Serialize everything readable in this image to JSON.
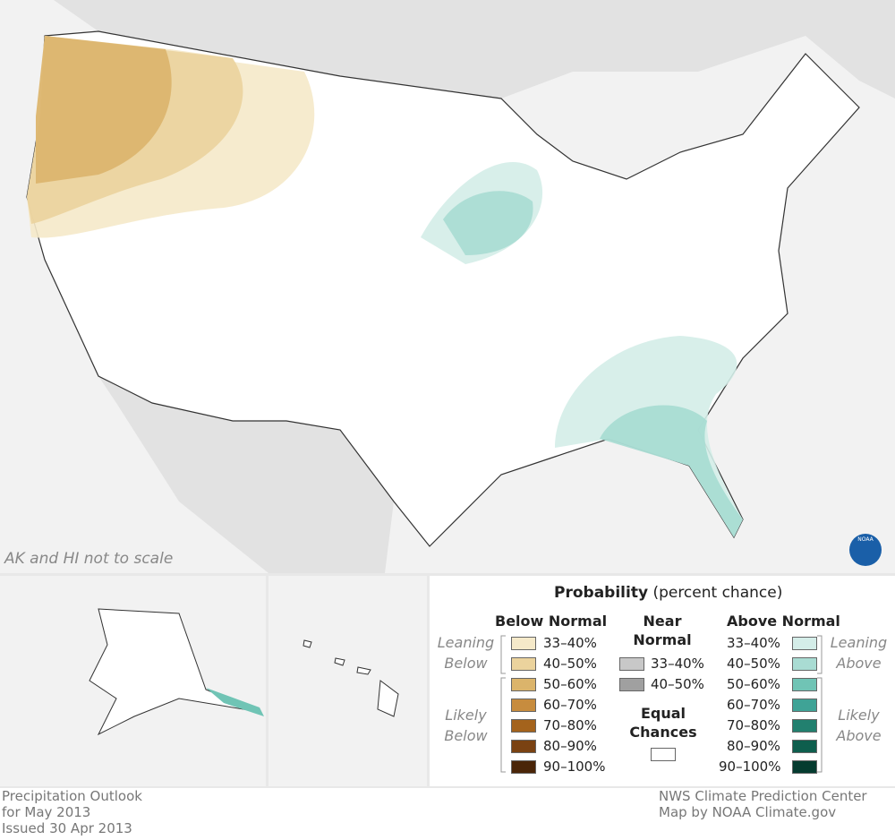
{
  "map": {
    "note": "AK and HI not to scale",
    "logo": "NOAA"
  },
  "legend": {
    "title": "Probability",
    "title_note": "(percent chance)",
    "below": {
      "heading": "Below Normal",
      "leaning": "Leaning Below",
      "likely": "Likely Below",
      "items": [
        {
          "label": "33–40%",
          "color": "#f5e9c9"
        },
        {
          "label": "40–50%",
          "color": "#ebd39d"
        },
        {
          "label": "50–60%",
          "color": "#dbb46b"
        },
        {
          "label": "60–70%",
          "color": "#c78c3e"
        },
        {
          "label": "70–80%",
          "color": "#a4631c"
        },
        {
          "label": "80–90%",
          "color": "#7a4212"
        },
        {
          "label": "90–100%",
          "color": "#4a2508"
        }
      ]
    },
    "near": {
      "heading": "Near Normal",
      "items": [
        {
          "label": "33–40%",
          "color": "#c8c8c8"
        },
        {
          "label": "40–50%",
          "color": "#a0a0a0"
        }
      ]
    },
    "equal": {
      "heading": "Equal Chances",
      "color": "#ffffff"
    },
    "above": {
      "heading": "Above Normal",
      "leaning": "Leaning Above",
      "likely": "Likely Above",
      "items": [
        {
          "label": "33–40%",
          "color": "#d4ede8"
        },
        {
          "label": "40–50%",
          "color": "#a9dcd3"
        },
        {
          "label": "50–60%",
          "color": "#70c4b5"
        },
        {
          "label": "60–70%",
          "color": "#3fa396"
        },
        {
          "label": "70–80%",
          "color": "#22806f"
        },
        {
          "label": "80–90%",
          "color": "#0e5e4d"
        },
        {
          "label": "90–100%",
          "color": "#053b2f"
        }
      ]
    }
  },
  "footer": {
    "left": [
      "Precipitation Outlook",
      "for May 2013",
      "Issued 30 Apr 2013"
    ],
    "right": [
      "NWS Climate Prediction Center",
      "Map by NOAA Climate.gov"
    ]
  }
}
